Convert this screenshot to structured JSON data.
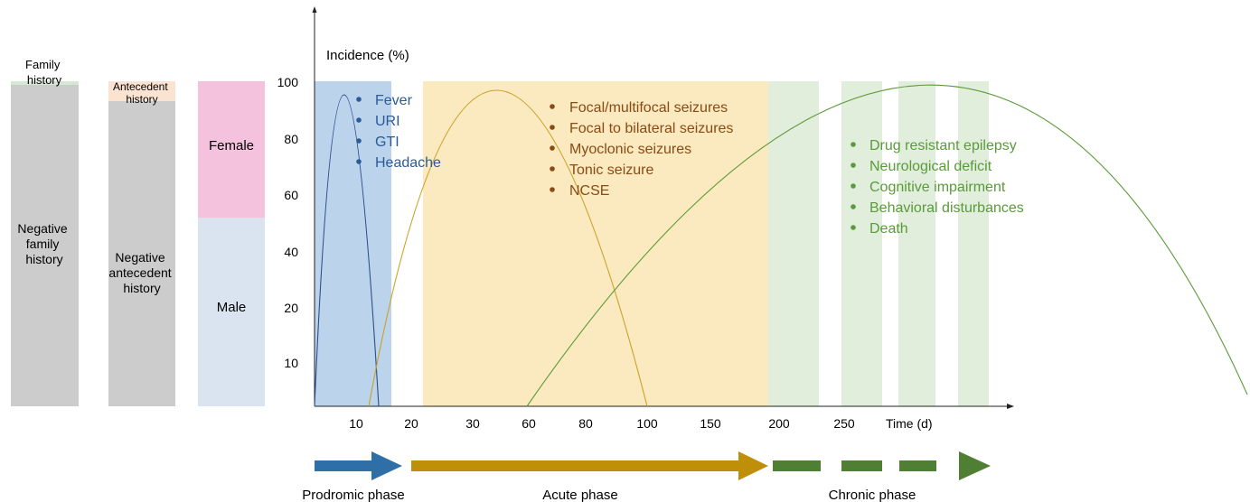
{
  "bars": {
    "family": {
      "top_label_lines": [
        "Family",
        "history"
      ],
      "bottom_label_lines": [
        "Negative",
        "family",
        "history"
      ],
      "top_fraction": 0.012,
      "colors": {
        "top": "#d5e8d4",
        "bottom": "#cccccc"
      }
    },
    "antecedent": {
      "top_label_lines": [
        "Antecedent",
        "history"
      ],
      "bottom_label_lines": [
        "Negative",
        "antecedent",
        "history"
      ],
      "top_fraction": 0.06,
      "colors": {
        "top": "#fbe3d2",
        "bottom": "#cccccc"
      }
    },
    "sex": {
      "top_label": "Female",
      "bottom_label": "Male",
      "top_fraction": 0.42,
      "colors": {
        "top": "#f5c2dd",
        "bottom": "#dae4f1"
      }
    }
  },
  "y_axis": {
    "label": "Incidence (%)",
    "ticks": [
      "100",
      "80",
      "60",
      "40",
      "20",
      "10"
    ]
  },
  "x_axis": {
    "label": "Time (d)",
    "ticks": [
      "10",
      "20",
      "30",
      "60",
      "80",
      "100",
      "150",
      "200",
      "250"
    ]
  },
  "bands": {
    "prodromic_color": "#bcd3ec",
    "acute_color": "#fbeac0",
    "chronic_color": "#e1eedc"
  },
  "curve_colors": {
    "prodromic": "#2c4c8c",
    "acute": "#c9a227",
    "chronic": "#5c9a3a"
  },
  "prodromic_symptoms": [
    "Fever",
    "URI",
    "GTI",
    "Headache"
  ],
  "acute_symptoms": [
    "Focal/multifocal seizures",
    "Focal to bilateral seizures",
    "Myoclonic seizures",
    "Tonic seizure",
    "NCSE"
  ],
  "chronic_outcomes": [
    "Drug resistant epilepsy",
    "Neurological deficit",
    "Cognitive impairment",
    "Behavioral disturbances",
    "Death"
  ],
  "text_colors": {
    "prodromic": "#2a5a9a",
    "acute": "#8a4a14",
    "chronic": "#5a9a3a"
  },
  "phases": [
    {
      "label": "Prodromic phase",
      "color": "#2e6fa8"
    },
    {
      "label": "Acute phase",
      "color": "#bf8f0a"
    },
    {
      "label": "Chronic phase",
      "color": "#4f7f33"
    }
  ]
}
